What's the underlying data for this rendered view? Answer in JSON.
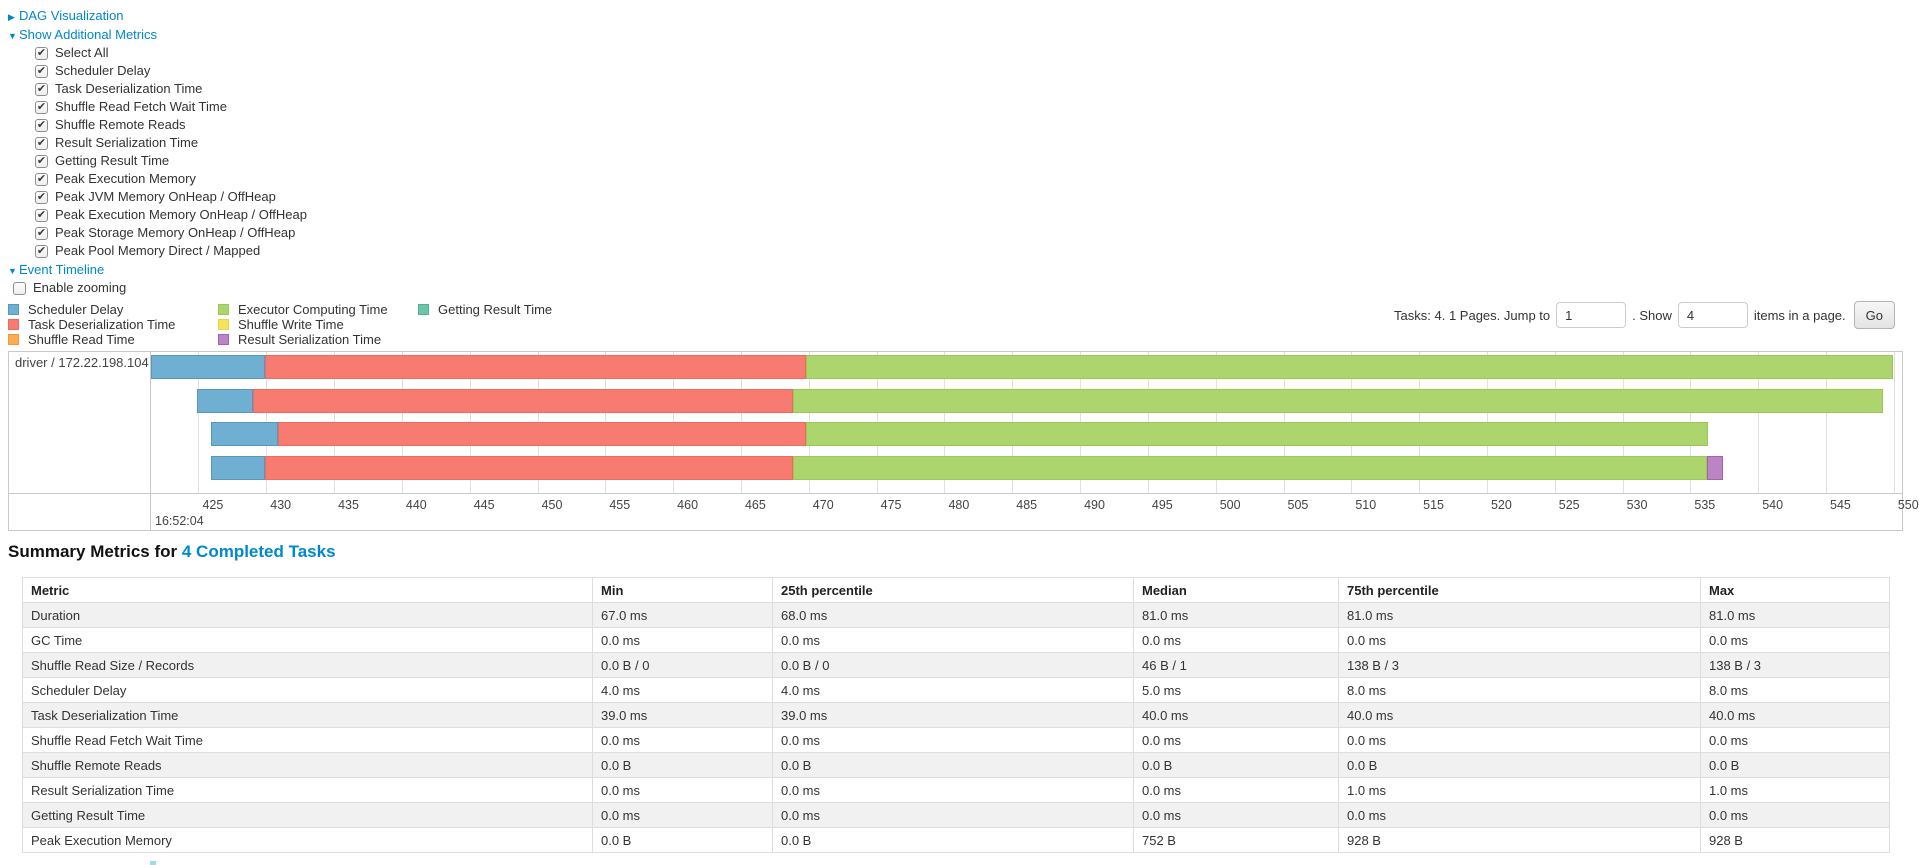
{
  "controls": {
    "dag": {
      "arrow": "▶",
      "label": "DAG Visualization"
    },
    "metrics": {
      "arrow": "▼",
      "label": "Show Additional Metrics",
      "items": [
        {
          "label": "Select All",
          "checked": true
        },
        {
          "label": "Scheduler Delay",
          "checked": true
        },
        {
          "label": "Task Deserialization Time",
          "checked": true
        },
        {
          "label": "Shuffle Read Fetch Wait Time",
          "checked": true
        },
        {
          "label": "Shuffle Remote Reads",
          "checked": true
        },
        {
          "label": "Result Serialization Time",
          "checked": true
        },
        {
          "label": "Getting Result Time",
          "checked": true
        },
        {
          "label": "Peak Execution Memory",
          "checked": true
        },
        {
          "label": "Peak JVM Memory OnHeap / OffHeap",
          "checked": true
        },
        {
          "label": "Peak Execution Memory OnHeap / OffHeap",
          "checked": true
        },
        {
          "label": "Peak Storage Memory OnHeap / OffHeap",
          "checked": true
        },
        {
          "label": "Peak Pool Memory Direct / Mapped",
          "checked": true
        }
      ]
    },
    "event_timeline": {
      "arrow": "▼",
      "label": "Event Timeline"
    },
    "enable_zooming": {
      "label": "Enable zooming",
      "checked": false
    }
  },
  "colors": {
    "link": "#0088cc",
    "series": {
      "scheduler_delay": {
        "fill": "#6FB0D2",
        "border": "#5798BE"
      },
      "task_deserialization": {
        "fill": "#F87B71",
        "border": "#EE6A60"
      },
      "shuffle_read": {
        "fill": "#FAAC55",
        "border": "#F09A3D"
      },
      "executor_computing": {
        "fill": "#ACD56E",
        "border": "#9CC757"
      },
      "shuffle_write": {
        "fill": "#F7E25C",
        "border": "#E8D145"
      },
      "result_serialization": {
        "fill": "#BC84C4",
        "border": "#A265AC"
      },
      "getting_result": {
        "fill": "#6CC5A8",
        "border": "#55AF90"
      }
    }
  },
  "legend": {
    "columns": [
      [
        {
          "key": "scheduler_delay",
          "label": "Scheduler Delay"
        },
        {
          "key": "task_deserialization",
          "label": "Task Deserialization Time"
        },
        {
          "key": "shuffle_read",
          "label": "Shuffle Read Time"
        }
      ],
      [
        {
          "key": "executor_computing",
          "label": "Executor Computing Time"
        },
        {
          "key": "shuffle_write",
          "label": "Shuffle Write Time"
        },
        {
          "key": "result_serialization",
          "label": "Result Serialization Time"
        }
      ],
      [
        {
          "key": "getting_result",
          "label": "Getting Result Time"
        }
      ]
    ]
  },
  "pagination": {
    "prefix": "Tasks: 4. 1 Pages. Jump to",
    "jump_value": "1",
    "mid": ". Show",
    "show_value": "4",
    "suffix": "items in a page.",
    "go_label": "Go"
  },
  "chart_data": {
    "type": "timeline",
    "group_label": "driver / 172.22.198.104",
    "axis": {
      "min": 421.5,
      "max": 550.6,
      "tick_start": 425,
      "tick_step": 5,
      "tick_end": 550,
      "major_time_label": "16:52:04"
    },
    "tasks": [
      {
        "segments": [
          {
            "t": "scheduler_delay",
            "start": 421.5,
            "end": 429.9
          },
          {
            "t": "task_deserialization",
            "start": 429.9,
            "end": 469.8
          },
          {
            "t": "executor_computing",
            "start": 469.8,
            "end": 549.9
          }
        ]
      },
      {
        "segments": [
          {
            "t": "scheduler_delay",
            "start": 424.9,
            "end": 429.0
          },
          {
            "t": "task_deserialization",
            "start": 429.0,
            "end": 468.8
          },
          {
            "t": "executor_computing",
            "start": 468.8,
            "end": 549.2
          }
        ]
      },
      {
        "segments": [
          {
            "t": "scheduler_delay",
            "start": 425.9,
            "end": 430.9
          },
          {
            "t": "task_deserialization",
            "start": 430.9,
            "end": 469.8
          },
          {
            "t": "executor_computing",
            "start": 469.8,
            "end": 536.3
          }
        ]
      },
      {
        "segments": [
          {
            "t": "scheduler_delay",
            "start": 425.9,
            "end": 429.9
          },
          {
            "t": "task_deserialization",
            "start": 429.9,
            "end": 468.8
          },
          {
            "t": "executor_computing",
            "start": 468.8,
            "end": 536.2
          },
          {
            "t": "result_serialization",
            "start": 536.2,
            "end": 537.4
          }
        ]
      }
    ]
  },
  "summary": {
    "title_prefix": "Summary Metrics for",
    "title_link": "4 Completed Tasks",
    "columns": [
      "Metric",
      "Min",
      "25th percentile",
      "Median",
      "75th percentile",
      "Max"
    ],
    "rows": [
      [
        "Duration",
        "67.0 ms",
        "68.0 ms",
        "81.0 ms",
        "81.0 ms",
        "81.0 ms"
      ],
      [
        "GC Time",
        "0.0 ms",
        "0.0 ms",
        "0.0 ms",
        "0.0 ms",
        "0.0 ms"
      ],
      [
        "Shuffle Read Size / Records",
        "0.0 B / 0",
        "0.0 B / 0",
        "46 B / 1",
        "138 B / 3",
        "138 B / 3"
      ],
      [
        "Scheduler Delay",
        "4.0 ms",
        "4.0 ms",
        "5.0 ms",
        "8.0 ms",
        "8.0 ms"
      ],
      [
        "Task Deserialization Time",
        "39.0 ms",
        "39.0 ms",
        "40.0 ms",
        "40.0 ms",
        "40.0 ms"
      ],
      [
        "Shuffle Read Fetch Wait Time",
        "0.0 ms",
        "0.0 ms",
        "0.0 ms",
        "0.0 ms",
        "0.0 ms"
      ],
      [
        "Shuffle Remote Reads",
        "0.0 B",
        "0.0 B",
        "0.0 B",
        "0.0 B",
        "0.0 B"
      ],
      [
        "Result Serialization Time",
        "0.0 ms",
        "0.0 ms",
        "0.0 ms",
        "1.0 ms",
        "1.0 ms"
      ],
      [
        "Getting Result Time",
        "0.0 ms",
        "0.0 ms",
        "0.0 ms",
        "0.0 ms",
        "0.0 ms"
      ],
      [
        "Peak Execution Memory",
        "0.0 B",
        "0.0 B",
        "752 B",
        "928 B",
        "928 B"
      ]
    ]
  }
}
